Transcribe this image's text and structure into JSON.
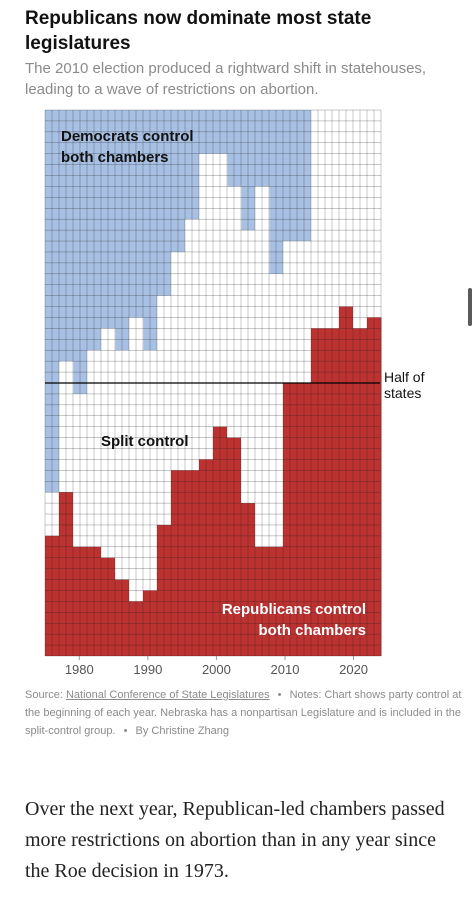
{
  "title": "Republicans now dominate most state legislatures",
  "subtitle": "The 2010 election produced a rightward shift in statehouses, leading to a wave of restrictions on abortion.",
  "chart_data": {
    "type": "area",
    "x": [
      1976,
      1978,
      1980,
      1982,
      1984,
      1986,
      1988,
      1990,
      1992,
      1994,
      1996,
      1998,
      2000,
      2002,
      2004,
      2006,
      2008,
      2010,
      2012,
      2014,
      2016,
      2018,
      2020,
      2022
    ],
    "series": [
      {
        "name": "Republicans control both chambers",
        "values": [
          11,
          15,
          10,
          10,
          9,
          7,
          5,
          6,
          12,
          17,
          17,
          18,
          21,
          20,
          14,
          10,
          10,
          25,
          25,
          30,
          30,
          32,
          30,
          31
        ]
      },
      {
        "name": "Split control",
        "values": [
          4,
          12,
          14,
          18,
          21,
          21,
          26,
          22,
          21,
          20,
          23,
          28,
          25,
          23,
          25,
          33,
          25,
          13,
          13,
          20,
          23,
          26,
          20,
          20
        ]
      },
      {
        "name": "Democrats control both chambers",
        "values": [
          35,
          23,
          26,
          22,
          20,
          22,
          19,
          22,
          17,
          13,
          10,
          4,
          4,
          7,
          11,
          7,
          15,
          12,
          12,
          0,
          -3,
          -8,
          0,
          0
        ]
      }
    ],
    "xlim": [
      1975,
      2024
    ],
    "xticks": [
      "1980",
      "1990",
      "2000",
      "2010",
      "2020"
    ],
    "ylim": [
      0,
      50
    ],
    "annotations": {
      "democrats": [
        "Democrats control",
        "both chambers"
      ],
      "split": "Split control",
      "republicans": [
        "Republicans control",
        "both chambers"
      ],
      "half_line": [
        "Half of",
        "states"
      ],
      "half_value": 25
    },
    "colors": {
      "democrats": "#a7c0e3",
      "split": "#ffffff",
      "republicans": "#bb3231",
      "grid": "#1c1c1c"
    }
  },
  "source": {
    "prefix": "Source:",
    "link": "National Conference of State Legislatures",
    "separator": "•",
    "notes": "Notes: Chart shows party control at the beginning of each year. Nebraska has a nonpartisan Legislature and is included in the split-control group.",
    "byline": "By Christine Zhang"
  },
  "body_text": "Over the next year, Republican-led chambers passed more restrictions on abortion than in any year since the Roe decision in 1973."
}
